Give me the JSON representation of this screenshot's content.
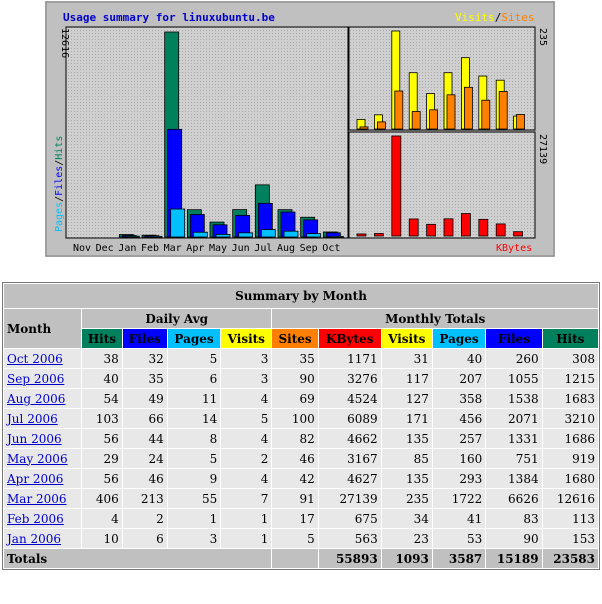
{
  "graph": {
    "title": "Usage summary for linuxubuntu.be",
    "legend_visits": "Visits",
    "legend_sep": "/",
    "legend_sites": "Sites",
    "left_axis_max": "12616",
    "left_axis_label_pages": "Pages",
    "left_axis_label_files": "Files",
    "left_axis_label_hits": "Hits",
    "right_top_max": "235",
    "right_bottom_max": "27139",
    "kbytes_label": "KBytes",
    "colors": {
      "hits": "#00805c",
      "files": "#0000ff",
      "pages": "#00c0ff",
      "visits": "#ffff00",
      "sites": "#ff8000",
      "kbytes": "#ff0000"
    }
  },
  "chart_data": {
    "type": "bar",
    "categories": [
      "Nov",
      "Dec",
      "Jan",
      "Feb",
      "Mar",
      "Apr",
      "May",
      "Jun",
      "Jul",
      "Aug",
      "Sep",
      "Oct"
    ],
    "series": [
      {
        "name": "Hits",
        "values": [
          0,
          0,
          153,
          113,
          12616,
          1680,
          919,
          1686,
          3210,
          1683,
          1215,
          308
        ]
      },
      {
        "name": "Files",
        "values": [
          0,
          0,
          90,
          83,
          6626,
          1384,
          751,
          1331,
          2071,
          1538,
          1055,
          260
        ]
      },
      {
        "name": "Pages",
        "values": [
          0,
          0,
          53,
          41,
          1722,
          293,
          160,
          257,
          456,
          358,
          207,
          40
        ]
      },
      {
        "name": "Visits",
        "values": [
          0,
          0,
          23,
          34,
          235,
          135,
          85,
          135,
          171,
          127,
          117,
          31
        ]
      },
      {
        "name": "Sites",
        "values": [
          0,
          0,
          5,
          17,
          91,
          42,
          46,
          82,
          100,
          69,
          90,
          35
        ]
      },
      {
        "name": "KBytes",
        "values": [
          0,
          0,
          563,
          675,
          27139,
          4627,
          3167,
          4662,
          6089,
          4524,
          3276,
          1171
        ]
      }
    ]
  },
  "table": {
    "title": "Summary by Month",
    "month_header": "Month",
    "daily_avg_header": "Daily Avg",
    "monthly_totals_header": "Monthly Totals",
    "daily_cols": [
      "Hits",
      "Files",
      "Pages",
      "Visits"
    ],
    "monthly_cols": [
      "Sites",
      "KBytes",
      "Visits",
      "Pages",
      "Files",
      "Hits"
    ],
    "rows": [
      {
        "month": "Oct 2006",
        "d": [
          "38",
          "32",
          "5",
          "3"
        ],
        "m": [
          "35",
          "1171",
          "31",
          "40",
          "260",
          "308"
        ]
      },
      {
        "month": "Sep 2006",
        "d": [
          "40",
          "35",
          "6",
          "3"
        ],
        "m": [
          "90",
          "3276",
          "117",
          "207",
          "1055",
          "1215"
        ]
      },
      {
        "month": "Aug 2006",
        "d": [
          "54",
          "49",
          "11",
          "4"
        ],
        "m": [
          "69",
          "4524",
          "127",
          "358",
          "1538",
          "1683"
        ]
      },
      {
        "month": "Jul 2006",
        "d": [
          "103",
          "66",
          "14",
          "5"
        ],
        "m": [
          "100",
          "6089",
          "171",
          "456",
          "2071",
          "3210"
        ]
      },
      {
        "month": "Jun 2006",
        "d": [
          "56",
          "44",
          "8",
          "4"
        ],
        "m": [
          "82",
          "4662",
          "135",
          "257",
          "1331",
          "1686"
        ]
      },
      {
        "month": "May 2006",
        "d": [
          "29",
          "24",
          "5",
          "2"
        ],
        "m": [
          "46",
          "3167",
          "85",
          "160",
          "751",
          "919"
        ]
      },
      {
        "month": "Apr 2006",
        "d": [
          "56",
          "46",
          "9",
          "4"
        ],
        "m": [
          "42",
          "4627",
          "135",
          "293",
          "1384",
          "1680"
        ]
      },
      {
        "month": "Mar 2006",
        "d": [
          "406",
          "213",
          "55",
          "7"
        ],
        "m": [
          "91",
          "27139",
          "235",
          "1722",
          "6626",
          "12616"
        ]
      },
      {
        "month": "Feb 2006",
        "d": [
          "4",
          "2",
          "1",
          "1"
        ],
        "m": [
          "17",
          "675",
          "34",
          "41",
          "83",
          "113"
        ]
      },
      {
        "month": "Jan 2006",
        "d": [
          "10",
          "6",
          "3",
          "1"
        ],
        "m": [
          "5",
          "563",
          "23",
          "53",
          "90",
          "153"
        ]
      }
    ],
    "totals_label": "Totals",
    "totals": [
      "55893",
      "1093",
      "3587",
      "15189",
      "23583"
    ]
  }
}
